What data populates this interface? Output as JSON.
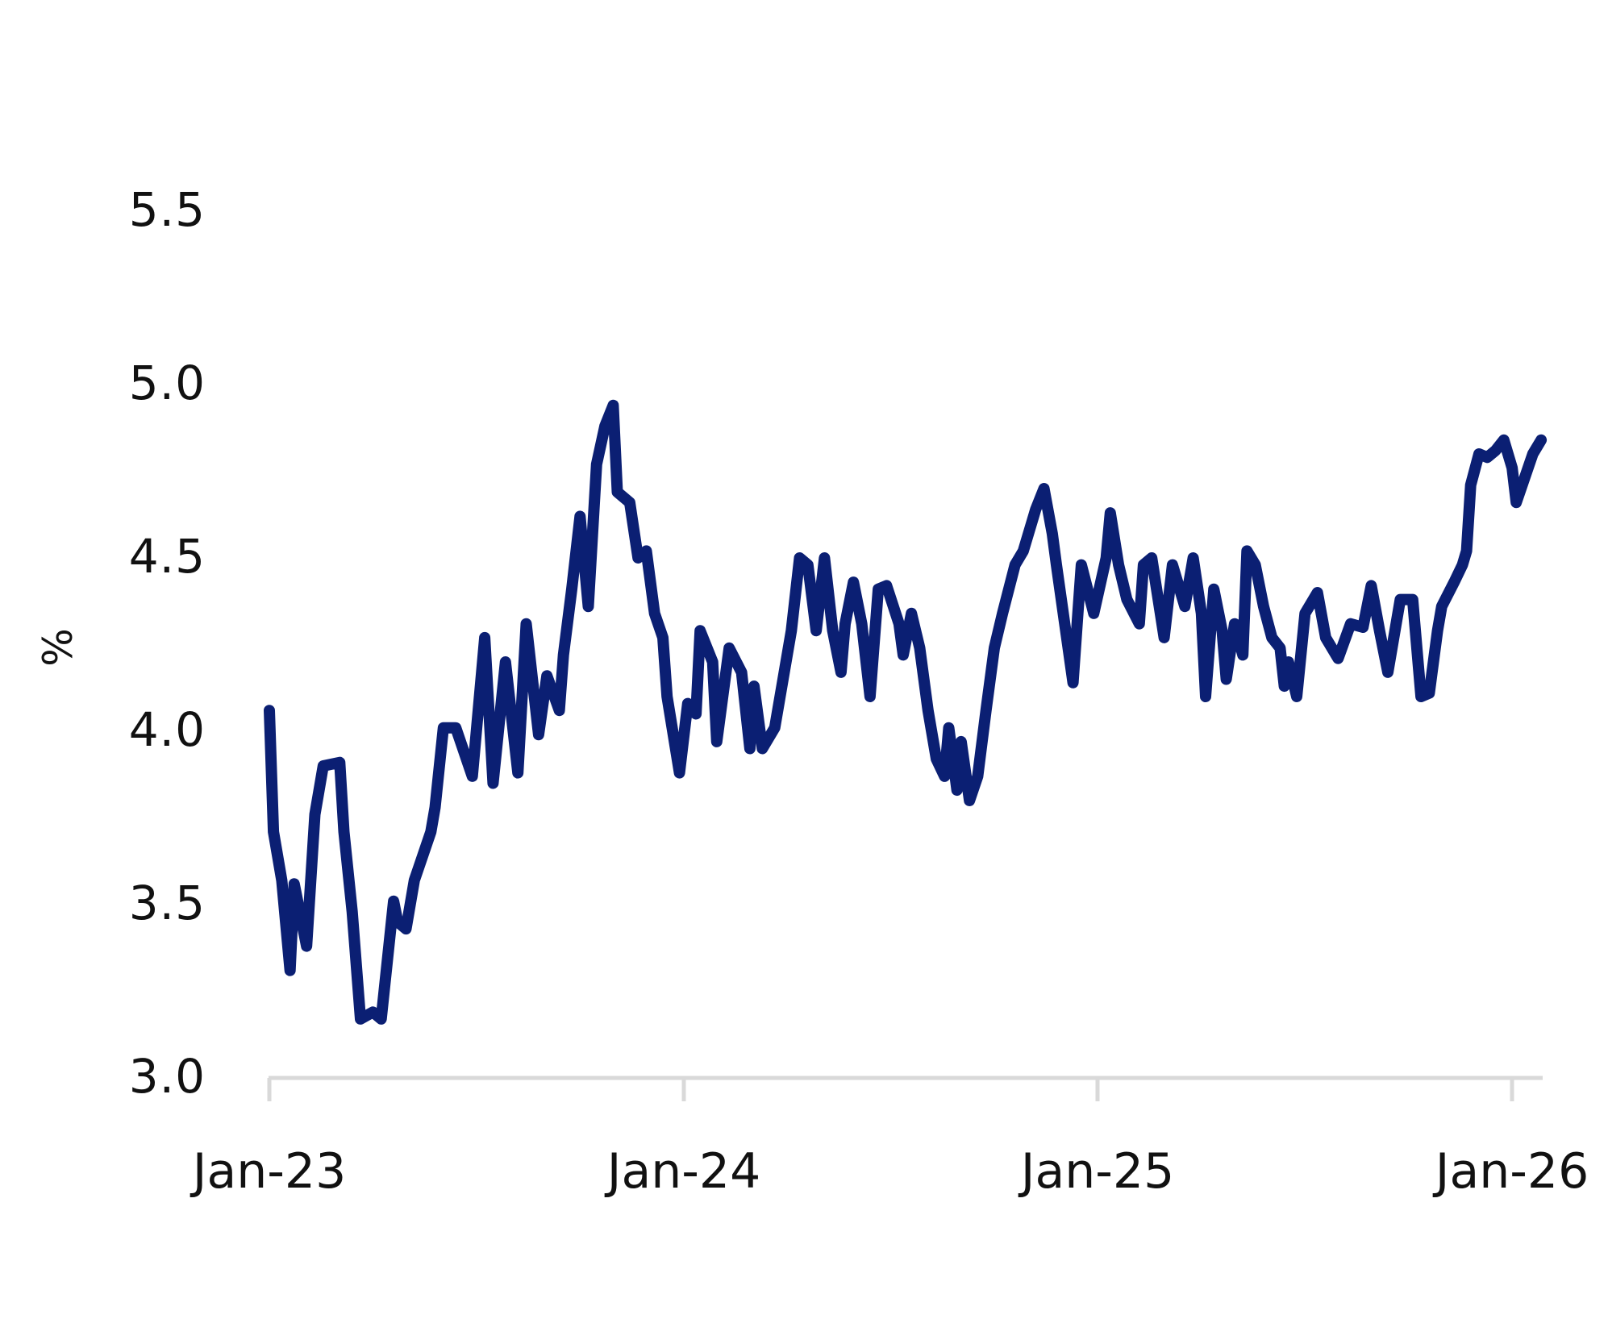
{
  "chart_data": {
    "type": "line",
    "title": "",
    "xlabel": "",
    "ylabel": "%",
    "ylim": [
      3.0,
      5.5
    ],
    "yticks": [
      "3.0",
      "3.5",
      "4.0",
      "4.5",
      "5.0",
      "5.5"
    ],
    "xticks": [
      "Jan-23",
      "Jan-24",
      "Jan-25",
      "Jan-26"
    ],
    "x_unit": "years since Jan-23",
    "xlim": [
      0,
      3.07
    ],
    "grid": false,
    "legend": null,
    "line_color": "#0B1F73",
    "series": [
      {
        "name": "%",
        "t": [
          0.0,
          0.01,
          0.03,
          0.05,
          0.06,
          0.09,
          0.11,
          0.13,
          0.17,
          0.18,
          0.2,
          0.22,
          0.25,
          0.27,
          0.3,
          0.31,
          0.33,
          0.35,
          0.39,
          0.4,
          0.42,
          0.45,
          0.49,
          0.52,
          0.54,
          0.57,
          0.6,
          0.62,
          0.65,
          0.67,
          0.7,
          0.71,
          0.73,
          0.75,
          0.77,
          0.79,
          0.81,
          0.83,
          0.84,
          0.87,
          0.89,
          0.91,
          0.93,
          0.95,
          0.96,
          0.99,
          1.01,
          1.03,
          1.04,
          1.07,
          1.08,
          1.11,
          1.14,
          1.16,
          1.17,
          1.19,
          1.22,
          1.24,
          1.26,
          1.28,
          1.3,
          1.32,
          1.34,
          1.36,
          1.38,
          1.39,
          1.41,
          1.43,
          1.45,
          1.47,
          1.49,
          1.52,
          1.53,
          1.55,
          1.57,
          1.59,
          1.61,
          1.63,
          1.64,
          1.66,
          1.67,
          1.69,
          1.71,
          1.73,
          1.75,
          1.77,
          1.8,
          1.82,
          1.85,
          1.87,
          1.89,
          1.9,
          1.92,
          1.94,
          1.95,
          1.96,
          1.99,
          2.02,
          2.03,
          2.05,
          2.07,
          2.1,
          2.11,
          2.13,
          2.16,
          2.18,
          2.21,
          2.23,
          2.25,
          2.26,
          2.28,
          2.3,
          2.31,
          2.33,
          2.35,
          2.36,
          2.38,
          2.4,
          2.42,
          2.44,
          2.45,
          2.46,
          2.48,
          2.5,
          2.53,
          2.55,
          2.58,
          2.61,
          2.64,
          2.66,
          2.68,
          2.7,
          2.73,
          2.76,
          2.78,
          2.8,
          2.82,
          2.83,
          2.86,
          2.88,
          2.89,
          2.9,
          2.92,
          2.94,
          2.96,
          2.98,
          3.0,
          3.01,
          3.03,
          3.05,
          3.07
        ],
        "values": [
          4.06,
          3.71,
          3.57,
          3.31,
          3.56,
          3.38,
          3.76,
          3.9,
          3.91,
          3.71,
          3.48,
          3.17,
          3.19,
          3.17,
          3.51,
          3.45,
          3.43,
          3.57,
          3.71,
          3.78,
          4.01,
          4.01,
          3.87,
          4.27,
          3.85,
          4.2,
          3.88,
          4.31,
          3.99,
          4.16,
          4.06,
          4.22,
          4.41,
          4.62,
          4.36,
          4.77,
          4.88,
          4.94,
          4.69,
          4.66,
          4.5,
          4.52,
          4.34,
          4.27,
          4.1,
          3.88,
          4.08,
          4.05,
          4.29,
          4.2,
          3.97,
          4.24,
          4.17,
          3.95,
          4.13,
          3.95,
          4.01,
          4.15,
          4.29,
          4.5,
          4.48,
          4.29,
          4.5,
          4.29,
          4.17,
          4.31,
          4.43,
          4.31,
          4.1,
          4.41,
          4.42,
          4.31,
          4.22,
          4.34,
          4.24,
          4.06,
          3.92,
          3.87,
          4.01,
          3.83,
          3.97,
          3.8,
          3.87,
          4.06,
          4.24,
          4.34,
          4.48,
          4.52,
          4.64,
          4.7,
          4.57,
          4.48,
          4.31,
          4.14,
          4.31,
          4.48,
          4.34,
          4.5,
          4.63,
          4.48,
          4.38,
          4.31,
          4.48,
          4.5,
          4.27,
          4.48,
          4.36,
          4.5,
          4.34,
          4.1,
          4.41,
          4.29,
          4.15,
          4.31,
          4.22,
          4.52,
          4.48,
          4.36,
          4.27,
          4.24,
          4.13,
          4.2,
          4.1,
          4.34,
          4.4,
          4.27,
          4.21,
          4.31,
          4.3,
          4.42,
          4.29,
          4.17,
          4.38,
          4.38,
          4.1,
          4.11,
          4.29,
          4.36,
          4.43,
          4.48,
          4.52,
          4.71,
          4.8,
          4.79,
          4.81,
          4.84,
          4.76,
          4.66,
          4.73,
          4.8,
          4.84
        ]
      }
    ]
  },
  "axis": {
    "y_label": "%",
    "y_ticks": [
      "5.5",
      "5.0",
      "4.5",
      "4.0",
      "3.5",
      "3.0"
    ],
    "x_ticks": [
      "Jan-23",
      "Jan-24",
      "Jan-25",
      "Jan-26"
    ]
  }
}
